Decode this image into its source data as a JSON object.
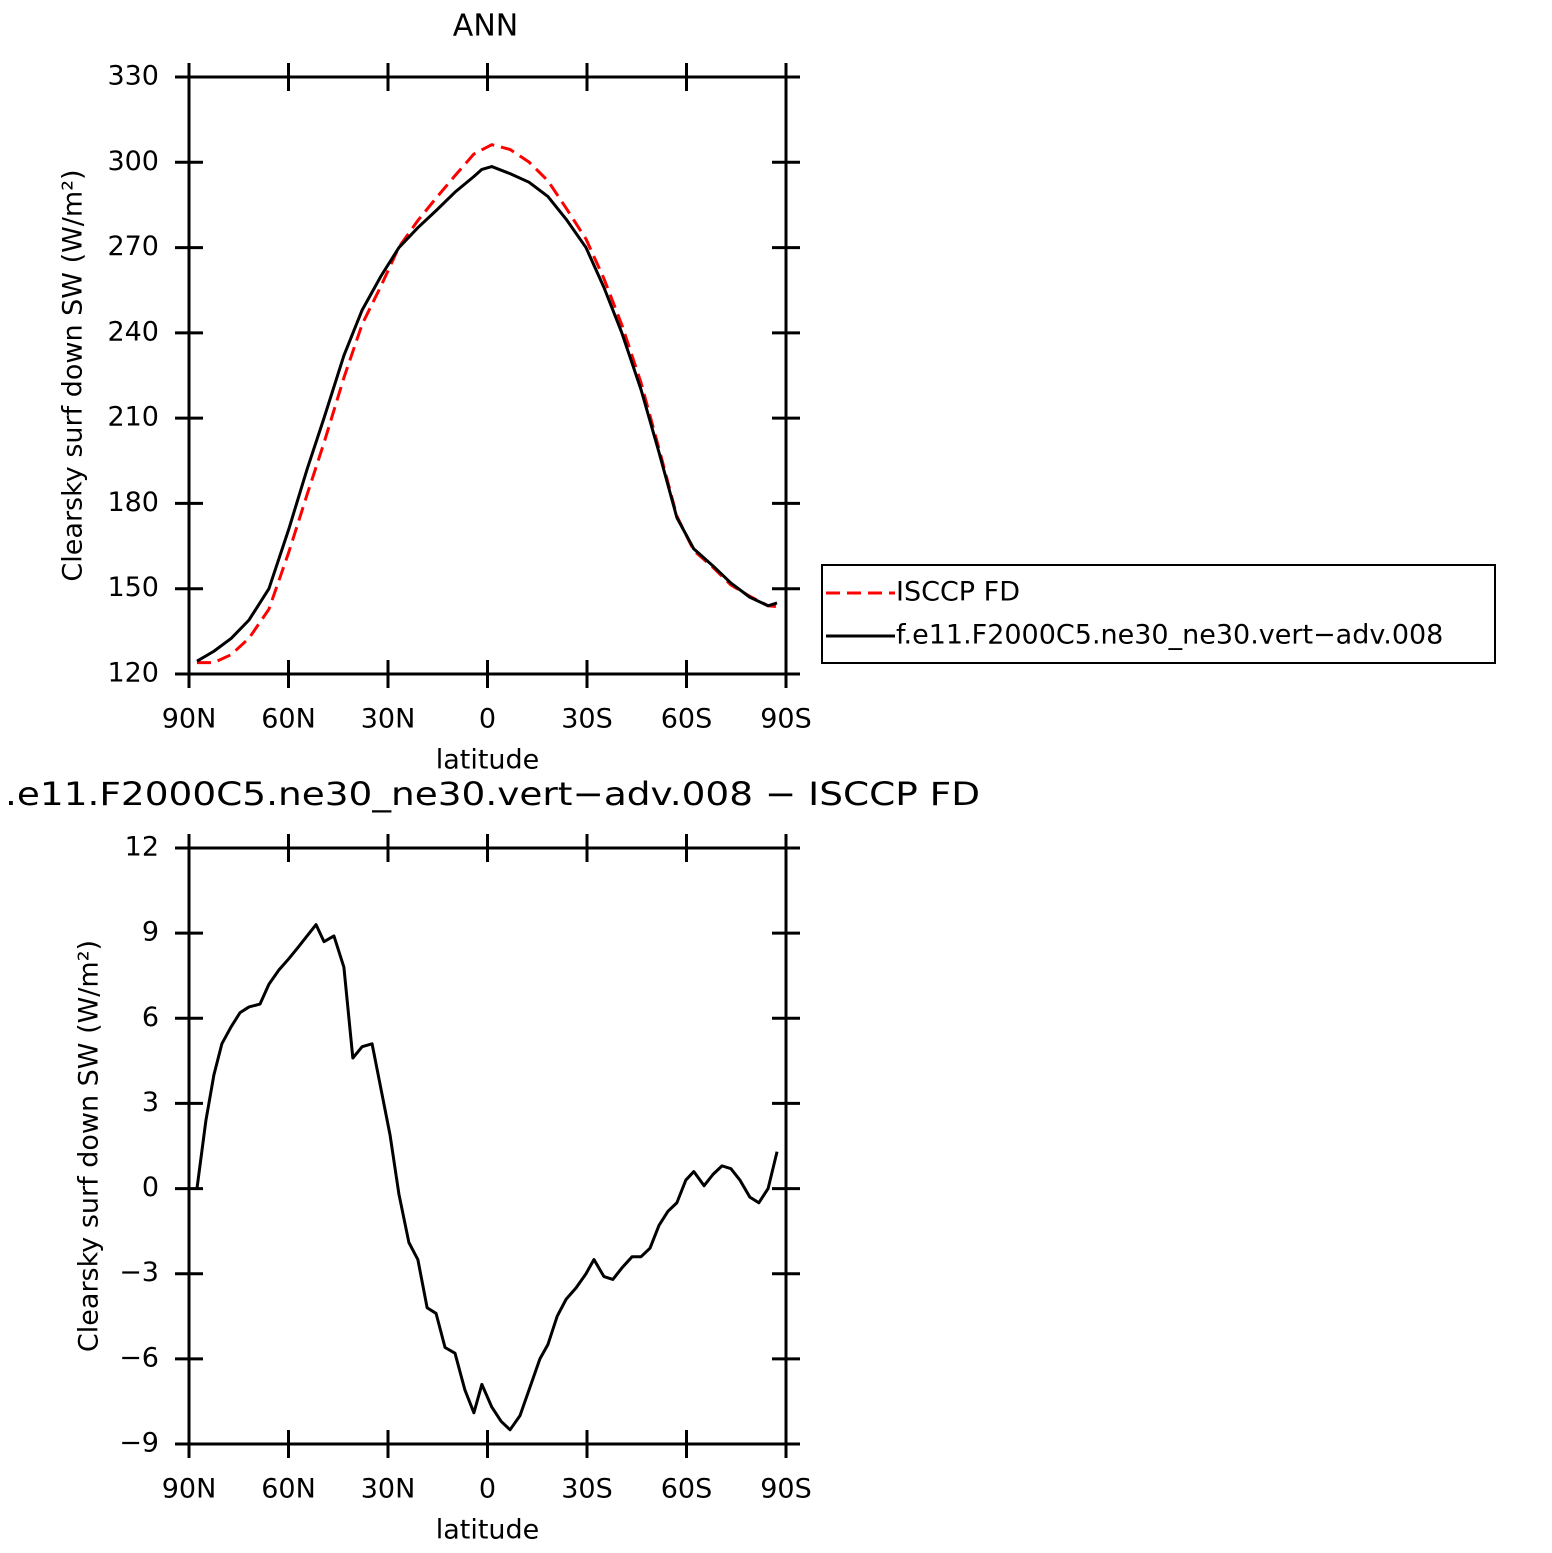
{
  "chart_data": [
    {
      "type": "line",
      "title": "ANN",
      "xlabel": "latitude",
      "ylabel": "Clearsky surf down SW (W/m²)",
      "x": [
        87.6,
        82.5,
        77.3,
        71.9,
        65.9,
        59.9,
        54.4,
        49.3,
        43.3,
        37.8,
        32.1,
        26.7,
        21.0,
        15.5,
        9.8,
        4.1,
        1.7,
        -1.3,
        -6.8,
        -12.5,
        -18.2,
        -23.7,
        -29.7,
        -35.1,
        -40.5,
        -46.3,
        -51.7,
        -57.1,
        -62.2,
        -68.0,
        -73.4,
        -79.1,
        -84.6,
        -87.3
      ],
      "series": [
        {
          "name": "ISCCP FD",
          "color": "#ff0000",
          "linestyle": "dashed",
          "values": [
            124,
            124,
            126.8,
            132.6,
            142.8,
            162.9,
            183.1,
            201.3,
            224.2,
            243,
            256.5,
            270.2,
            279.5,
            287.4,
            295.3,
            302.9,
            304.4,
            306.2,
            304.5,
            300.1,
            293.5,
            283.9,
            273,
            259.1,
            242.8,
            222.4,
            199.3,
            175.5,
            163.4,
            157.5,
            151.3,
            147.3,
            144,
            143.7
          ]
        },
        {
          "name": "f.e11.F2000C5.ne30_ne30.vert−adv.008",
          "color": "#000000",
          "linestyle": "solid",
          "values": [
            124.5,
            128,
            132.5,
            139,
            150,
            171,
            192,
            210,
            232,
            248,
            260,
            270,
            277,
            283,
            289.5,
            295,
            297.5,
            298.5,
            296,
            293,
            288,
            280,
            270,
            256,
            240,
            220,
            198,
            175,
            164,
            158,
            152,
            147,
            144,
            145
          ]
        }
      ],
      "xlim": [
        90,
        -90
      ],
      "xticks": [
        {
          "value": 90,
          "label": "90N"
        },
        {
          "value": 60,
          "label": "60N"
        },
        {
          "value": 30,
          "label": "30N"
        },
        0,
        {
          "value": -30,
          "label": "30S"
        },
        {
          "value": -60,
          "label": "60S"
        },
        {
          "value": -90,
          "label": "90S"
        }
      ],
      "ylim": [
        120,
        330
      ],
      "yticks": [
        120,
        150,
        180,
        210,
        240,
        270,
        300,
        330
      ],
      "legend": "outside right"
    },
    {
      "type": "line",
      "title": ".e11.F2000C5.ne30_ne30.vert−adv.008 − ISCCP FD",
      "xlabel": "latitude",
      "ylabel": "Clearsky surf down SW (W/m²)",
      "x": [
        87.6,
        84.9,
        82.5,
        80.1,
        77.3,
        74.6,
        71.9,
        68.6,
        65.9,
        62.9,
        59.9,
        57.1,
        54.4,
        51.7,
        49.3,
        46.3,
        43.3,
        40.6,
        37.8,
        34.8,
        32.1,
        29.4,
        26.7,
        23.7,
        21.0,
        18.2,
        15.5,
        12.8,
        9.8,
        6.8,
        4.1,
        1.7,
        -1.3,
        -4.1,
        -6.8,
        -9.8,
        -12.5,
        -15.8,
        -18.2,
        -21.0,
        -23.7,
        -26.7,
        -29.7,
        -32.1,
        -35.1,
        -37.8,
        -40.5,
        -43.6,
        -46.3,
        -49.0,
        -51.7,
        -54.4,
        -57.1,
        -59.8,
        -62.2,
        -65.3,
        -68.0,
        -70.7,
        -73.4,
        -76.1,
        -79.1,
        -81.8,
        -84.6,
        -87.3
      ],
      "series": [
        {
          "color": "#000000",
          "linestyle": "solid",
          "values": [
            0.0,
            2.4,
            4.0,
            5.1,
            5.7,
            6.2,
            6.4,
            6.5,
            7.2,
            7.7,
            8.1,
            8.5,
            8.9,
            9.3,
            8.7,
            8.9,
            7.8,
            4.6,
            5.0,
            5.1,
            3.5,
            1.9,
            -0.2,
            -1.9,
            -2.5,
            -4.2,
            -4.4,
            -5.6,
            -5.8,
            -7.1,
            -7.9,
            -6.9,
            -7.7,
            -8.2,
            -8.5,
            -8.0,
            -7.1,
            -6.0,
            -5.5,
            -4.5,
            -3.9,
            -3.5,
            -3.0,
            -2.5,
            -3.1,
            -3.2,
            -2.8,
            -2.4,
            -2.4,
            -2.1,
            -1.3,
            -0.8,
            -0.5,
            0.3,
            0.6,
            0.1,
            0.5,
            0.8,
            0.7,
            0.3,
            -0.3,
            -0.5,
            0.0,
            1.3
          ]
        }
      ],
      "xlim": [
        90,
        -90
      ],
      "xticks": [
        {
          "value": 90,
          "label": "90N"
        },
        {
          "value": 60,
          "label": "60N"
        },
        {
          "value": 30,
          "label": "30N"
        },
        0,
        {
          "value": -30,
          "label": "30S"
        },
        {
          "value": -60,
          "label": "60S"
        },
        {
          "value": -90,
          "label": "90S"
        }
      ],
      "ylim": [
        -9,
        12
      ],
      "yticks": [
        {
          "value": -9,
          "label": "−9"
        },
        {
          "value": -6,
          "label": "−6"
        },
        {
          "value": -3,
          "label": "−3"
        },
        0,
        3,
        6,
        9,
        12
      ]
    }
  ]
}
